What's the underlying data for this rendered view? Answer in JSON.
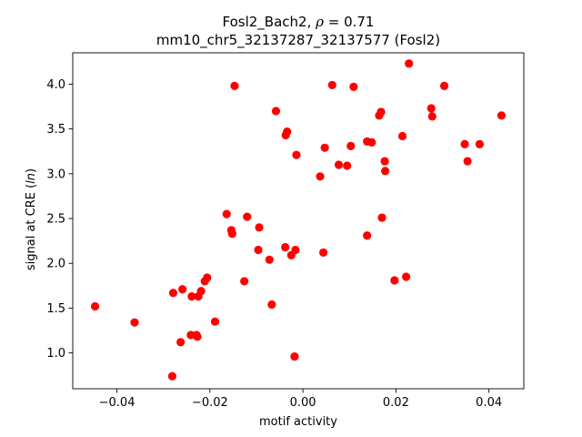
{
  "chart_data": {
    "type": "scatter",
    "title_line1": "Fosl2_Bach2, ρ = 0.71",
    "title_line1_prefix": "Fosl2_Bach2, ",
    "title_line1_rho": "ρ",
    "title_line1_suffix": " = 0.71",
    "title_line2": "mm10_chr5_32137287_32137577 (Fosl2)",
    "xlabel": "motif activity",
    "ylabel_prefix": "signal at CRE (",
    "ylabel_italic": "ln",
    "ylabel_suffix": ")",
    "xlim": [
      -0.0495,
      0.0475
    ],
    "ylim": [
      0.6,
      4.35
    ],
    "x_ticks": [
      -0.04,
      -0.02,
      0.0,
      0.02,
      0.04
    ],
    "x_tick_labels": [
      "−0.04",
      "−0.02",
      "0.00",
      "0.02",
      "0.04"
    ],
    "y_ticks": [
      1.0,
      1.5,
      2.0,
      2.5,
      3.0,
      3.5,
      4.0
    ],
    "y_tick_labels": [
      "1.0",
      "1.5",
      "2.0",
      "2.5",
      "3.0",
      "3.5",
      "4.0"
    ],
    "grid": false,
    "marker_color": "#ff0000",
    "points": [
      [
        -0.0447,
        1.52
      ],
      [
        -0.0362,
        1.34
      ],
      [
        -0.0281,
        0.74
      ],
      [
        -0.0279,
        1.67
      ],
      [
        -0.0263,
        1.12
      ],
      [
        -0.0259,
        1.71
      ],
      [
        -0.0241,
        1.2
      ],
      [
        -0.0239,
        1.63
      ],
      [
        -0.0229,
        1.2
      ],
      [
        -0.0227,
        1.18
      ],
      [
        -0.0225,
        1.63
      ],
      [
        -0.0219,
        1.69
      ],
      [
        -0.0211,
        1.8
      ],
      [
        -0.0206,
        1.84
      ],
      [
        -0.0189,
        1.35
      ],
      [
        -0.0164,
        2.55
      ],
      [
        -0.0154,
        2.37
      ],
      [
        -0.0152,
        2.33
      ],
      [
        -0.0147,
        3.98
      ],
      [
        -0.0126,
        1.8
      ],
      [
        -0.012,
        2.52
      ],
      [
        -0.0096,
        2.15
      ],
      [
        -0.0094,
        2.4
      ],
      [
        -0.0072,
        2.04
      ],
      [
        -0.0067,
        1.54
      ],
      [
        -0.0058,
        3.7
      ],
      [
        -0.0038,
        2.18
      ],
      [
        -0.0037,
        3.43
      ],
      [
        -0.0034,
        3.47
      ],
      [
        -0.0025,
        2.09
      ],
      [
        -0.0018,
        0.96
      ],
      [
        -0.0016,
        2.15
      ],
      [
        -0.0014,
        3.21
      ],
      [
        0.0037,
        2.97
      ],
      [
        0.0044,
        2.12
      ],
      [
        0.0047,
        3.29
      ],
      [
        0.0063,
        3.99
      ],
      [
        0.0077,
        3.1
      ],
      [
        0.0095,
        3.09
      ],
      [
        0.0103,
        3.31
      ],
      [
        0.0109,
        3.97
      ],
      [
        0.0138,
        2.31
      ],
      [
        0.0138,
        3.36
      ],
      [
        0.0148,
        3.35
      ],
      [
        0.0164,
        3.65
      ],
      [
        0.0168,
        3.69
      ],
      [
        0.017,
        2.51
      ],
      [
        0.0176,
        3.14
      ],
      [
        0.0177,
        3.03
      ],
      [
        0.0197,
        1.81
      ],
      [
        0.0214,
        3.42
      ],
      [
        0.0222,
        1.85
      ],
      [
        0.0228,
        4.23
      ],
      [
        0.0276,
        3.73
      ],
      [
        0.0278,
        3.64
      ],
      [
        0.0304,
        3.98
      ],
      [
        0.0348,
        3.33
      ],
      [
        0.0354,
        3.14
      ],
      [
        0.038,
        3.33
      ],
      [
        0.0427,
        3.65
      ]
    ]
  }
}
